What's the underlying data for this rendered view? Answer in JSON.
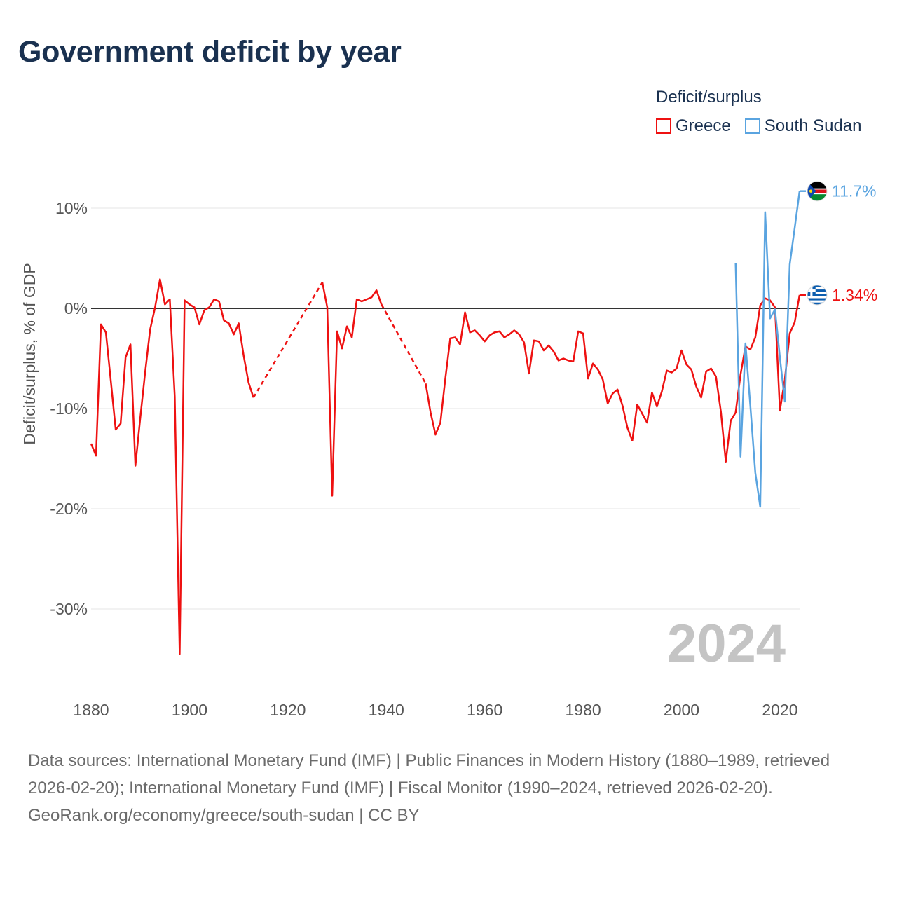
{
  "title": "Government deficit by year",
  "legend": {
    "title": "Deficit/surplus",
    "items": [
      {
        "label": "Greece",
        "color": "#ee1111"
      },
      {
        "label": "South Sudan",
        "color": "#5aa4e0"
      }
    ]
  },
  "footer": {
    "sources": "Data sources: International Monetary Fund (IMF) | Public Finances in Modern History (1880–1989, retrieved 2026-02-20); International Monetary Fund (IMF) | Fiscal Monitor (1990–2024, retrieved 2026-02-20).",
    "credit": "GeoRank.org/economy/greece/south-sudan | CC BY"
  },
  "chart_data": {
    "type": "line",
    "title": "Government deficit by year",
    "xlabel": "",
    "ylabel": "Deficit/surplus, % of GDP",
    "xlim": [
      1880,
      2024
    ],
    "ylim": [
      -35,
      12
    ],
    "x_ticks": [
      1880,
      1900,
      1920,
      1940,
      1960,
      1980,
      2000,
      2020
    ],
    "y_ticks": [
      {
        "value": 10,
        "label": "10%"
      },
      {
        "value": 0,
        "label": "0%"
      },
      {
        "value": -10,
        "label": "-10%"
      },
      {
        "value": -20,
        "label": "-20%"
      },
      {
        "value": -30,
        "label": "-30%"
      }
    ],
    "year_label": "2024",
    "series": [
      {
        "name": "Greece",
        "color": "#ee1111",
        "end_label": "1.34%",
        "points": [
          [
            1880,
            -13.5
          ],
          [
            1881,
            -14.7
          ],
          [
            1882,
            -1.6
          ],
          [
            1883,
            -2.4
          ],
          [
            1884,
            -7.2
          ],
          [
            1885,
            -12.1
          ],
          [
            1886,
            -11.5
          ],
          [
            1887,
            -4.9
          ],
          [
            1888,
            -3.6
          ],
          [
            1889,
            -15.7
          ],
          [
            1890,
            -10.9
          ],
          [
            1891,
            -6.3
          ],
          [
            1892,
            -2.1
          ],
          [
            1893,
            0.1
          ],
          [
            1894,
            2.9
          ],
          [
            1895,
            0.4
          ],
          [
            1896,
            0.9
          ],
          [
            1897,
            -8.8
          ],
          [
            1898,
            -34.5
          ],
          [
            1899,
            0.8
          ],
          [
            1900,
            0.4
          ],
          [
            1901,
            0.1
          ],
          [
            1902,
            -1.6
          ],
          [
            1903,
            -0.2
          ],
          [
            1904,
            0.1
          ],
          [
            1905,
            0.9
          ],
          [
            1906,
            0.7
          ],
          [
            1907,
            -1.2
          ],
          [
            1908,
            -1.5
          ],
          [
            1909,
            -2.6
          ],
          [
            1910,
            -1.5
          ],
          [
            1911,
            -4.7
          ],
          [
            1912,
            -7.4
          ],
          [
            1913,
            -8.9
          ],
          [
            1927,
            2.6
          ],
          [
            1928,
            0.1
          ],
          [
            1929,
            -18.7
          ],
          [
            1930,
            -2.3
          ],
          [
            1931,
            -4.0
          ],
          [
            1932,
            -1.8
          ],
          [
            1933,
            -2.9
          ],
          [
            1934,
            0.9
          ],
          [
            1935,
            0.7
          ],
          [
            1936,
            0.9
          ],
          [
            1937,
            1.1
          ],
          [
            1938,
            1.8
          ],
          [
            1939,
            0.4
          ],
          [
            1948,
            -7.5
          ],
          [
            1949,
            -10.4
          ],
          [
            1950,
            -12.6
          ],
          [
            1951,
            -11.4
          ],
          [
            1952,
            -7.0
          ],
          [
            1953,
            -3.0
          ],
          [
            1954,
            -2.9
          ],
          [
            1955,
            -3.6
          ],
          [
            1956,
            -0.4
          ],
          [
            1957,
            -2.4
          ],
          [
            1958,
            -2.2
          ],
          [
            1959,
            -2.7
          ],
          [
            1960,
            -3.3
          ],
          [
            1961,
            -2.7
          ],
          [
            1962,
            -2.4
          ],
          [
            1963,
            -2.3
          ],
          [
            1964,
            -2.9
          ],
          [
            1965,
            -2.6
          ],
          [
            1966,
            -2.2
          ],
          [
            1967,
            -2.6
          ],
          [
            1968,
            -3.4
          ],
          [
            1969,
            -6.5
          ],
          [
            1970,
            -3.2
          ],
          [
            1971,
            -3.3
          ],
          [
            1972,
            -4.2
          ],
          [
            1973,
            -3.7
          ],
          [
            1974,
            -4.3
          ],
          [
            1975,
            -5.2
          ],
          [
            1976,
            -5.0
          ],
          [
            1977,
            -5.2
          ],
          [
            1978,
            -5.3
          ],
          [
            1979,
            -2.3
          ],
          [
            1980,
            -2.5
          ],
          [
            1981,
            -7.0
          ],
          [
            1982,
            -5.5
          ],
          [
            1983,
            -6.1
          ],
          [
            1984,
            -7.1
          ],
          [
            1985,
            -9.5
          ],
          [
            1986,
            -8.5
          ],
          [
            1987,
            -8.1
          ],
          [
            1988,
            -9.7
          ],
          [
            1989,
            -11.9
          ],
          [
            1990,
            -13.2
          ],
          [
            1991,
            -9.6
          ],
          [
            1992,
            -10.5
          ],
          [
            1993,
            -11.4
          ],
          [
            1994,
            -8.4
          ],
          [
            1995,
            -9.8
          ],
          [
            1996,
            -8.3
          ],
          [
            1997,
            -6.2
          ],
          [
            1998,
            -6.4
          ],
          [
            1999,
            -6.0
          ],
          [
            2000,
            -4.2
          ],
          [
            2001,
            -5.6
          ],
          [
            2002,
            -6.1
          ],
          [
            2003,
            -7.8
          ],
          [
            2004,
            -8.9
          ],
          [
            2005,
            -6.3
          ],
          [
            2006,
            -6.0
          ],
          [
            2007,
            -6.8
          ],
          [
            2008,
            -10.3
          ],
          [
            2009,
            -15.3
          ],
          [
            2010,
            -11.2
          ],
          [
            2011,
            -10.4
          ],
          [
            2012,
            -6.6
          ],
          [
            2013,
            -3.8
          ],
          [
            2014,
            -4.1
          ],
          [
            2015,
            -2.9
          ],
          [
            2016,
            0.3
          ],
          [
            2017,
            1.0
          ],
          [
            2018,
            0.8
          ],
          [
            2019,
            0.1
          ],
          [
            2020,
            -10.2
          ],
          [
            2021,
            -7.1
          ],
          [
            2022,
            -2.5
          ],
          [
            2023,
            -1.4
          ],
          [
            2024,
            1.34
          ]
        ],
        "interpolated_gaps": [
          [
            1913,
            1927
          ],
          [
            1939,
            1948
          ]
        ]
      },
      {
        "name": "South Sudan",
        "color": "#5aa4e0",
        "end_label": "11.7%",
        "points": [
          [
            2011,
            4.5
          ],
          [
            2012,
            -14.8
          ],
          [
            2013,
            -3.5
          ],
          [
            2014,
            -9.8
          ],
          [
            2015,
            -16.4
          ],
          [
            2016,
            -19.8
          ],
          [
            2017,
            9.6
          ],
          [
            2018,
            -1.0
          ],
          [
            2019,
            -0.1
          ],
          [
            2020,
            -4.9
          ],
          [
            2021,
            -9.3
          ],
          [
            2022,
            4.4
          ],
          [
            2023,
            8.0
          ],
          [
            2024,
            11.7
          ]
        ]
      }
    ]
  }
}
